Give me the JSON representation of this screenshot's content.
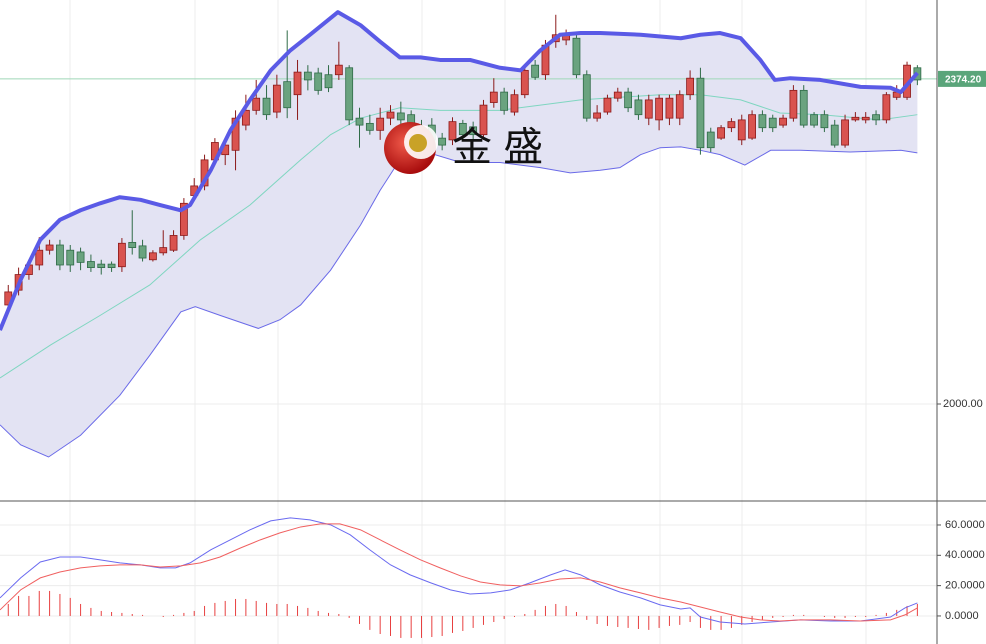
{
  "chart_data": [
    {
      "type": "candlestick",
      "open": [
        2114,
        2131,
        2149,
        2160,
        2177,
        2183,
        2177,
        2175,
        2164,
        2161,
        2161,
        2158,
        2186,
        2182,
        2166,
        2174,
        2177,
        2194,
        2240,
        2251,
        2281,
        2287,
        2292,
        2321,
        2338,
        2352,
        2336,
        2371,
        2356,
        2382,
        2381,
        2379,
        2379,
        2387,
        2329,
        2323,
        2315,
        2329,
        2335,
        2333,
        2318,
        2321,
        2306,
        2304,
        2323,
        2319,
        2310,
        2347,
        2359,
        2336,
        2356,
        2390,
        2379,
        2417,
        2419,
        2421,
        2379,
        2329,
        2336,
        2352,
        2359,
        2350,
        2329,
        2327,
        2329,
        2329,
        2356,
        2375,
        2313,
        2306,
        2318,
        2304,
        2306,
        2333,
        2329,
        2321,
        2329,
        2361,
        2333,
        2333,
        2321,
        2298,
        2327,
        2327,
        2333,
        2327,
        2353,
        2353,
        2387
      ],
      "high": [
        2137,
        2157,
        2166,
        2192,
        2189,
        2189,
        2183,
        2180,
        2172,
        2166,
        2164,
        2191,
        2223,
        2189,
        2177,
        2200,
        2200,
        2237,
        2260,
        2287,
        2306,
        2304,
        2338,
        2356,
        2373,
        2367,
        2379,
        2430,
        2396,
        2390,
        2387,
        2390,
        2417,
        2390,
        2341,
        2333,
        2341,
        2344,
        2348,
        2338,
        2327,
        2329,
        2312,
        2330,
        2327,
        2325,
        2350,
        2375,
        2364,
        2362,
        2390,
        2396,
        2419,
        2448,
        2431,
        2427,
        2384,
        2344,
        2356,
        2364,
        2364,
        2356,
        2356,
        2356,
        2356,
        2361,
        2384,
        2387,
        2318,
        2321,
        2329,
        2333,
        2338,
        2338,
        2333,
        2333,
        2367,
        2367,
        2336,
        2338,
        2327,
        2333,
        2336,
        2336,
        2338,
        2359,
        2367,
        2394,
        2390
      ],
      "low": [
        2108,
        2125,
        2143,
        2154,
        2172,
        2154,
        2152,
        2154,
        2152,
        2149,
        2152,
        2152,
        2172,
        2164,
        2164,
        2171,
        2175,
        2189,
        2237,
        2246,
        2277,
        2275,
        2269,
        2315,
        2333,
        2327,
        2329,
        2329,
        2327,
        2361,
        2356,
        2359,
        2373,
        2321,
        2295,
        2310,
        2304,
        2321,
        2315,
        2287,
        2292,
        2292,
        2292,
        2298,
        2304,
        2304,
        2304,
        2341,
        2333,
        2332,
        2352,
        2373,
        2373,
        2410,
        2413,
        2375,
        2325,
        2325,
        2333,
        2348,
        2336,
        2327,
        2321,
        2315,
        2321,
        2321,
        2350,
        2287,
        2290,
        2304,
        2313,
        2298,
        2304,
        2313,
        2313,
        2318,
        2325,
        2318,
        2318,
        2313,
        2295,
        2295,
        2325,
        2323,
        2321,
        2323,
        2350,
        2350,
        2367
      ],
      "close": [
        2129,
        2149,
        2160,
        2177,
        2183,
        2160,
        2160,
        2163,
        2157,
        2157,
        2157,
        2185,
        2180,
        2168,
        2174,
        2180,
        2194,
        2231,
        2251,
        2281,
        2301,
        2298,
        2329,
        2338,
        2352,
        2333,
        2367,
        2341,
        2382,
        2373,
        2361,
        2364,
        2390,
        2327,
        2321,
        2315,
        2329,
        2336,
        2327,
        2298,
        2298,
        2304,
        2298,
        2325,
        2310,
        2310,
        2344,
        2359,
        2338,
        2356,
        2384,
        2376,
        2413,
        2425,
        2425,
        2379,
        2329,
        2335,
        2352,
        2359,
        2341,
        2333,
        2350,
        2352,
        2352,
        2356,
        2375,
        2295,
        2295,
        2318,
        2325,
        2327,
        2333,
        2318,
        2318,
        2329,
        2361,
        2321,
        2321,
        2318,
        2298,
        2327,
        2330,
        2330,
        2327,
        2356,
        2359,
        2390,
        2373
      ],
      "up_color": "#d9534f",
      "down_color": "#6aa37f",
      "bands": [
        {
          "x": [
            -0.8,
            1.2,
            3.1,
            5.0,
            7.0,
            8.9,
            10.8,
            12.8,
            14.7,
            16.7,
            17.6,
            19.6,
            21.5,
            23.4,
            25.4,
            27.3,
            29.2,
            31.9,
            34.1,
            36.0,
            37.9,
            39.9,
            41.8,
            44.7,
            47.6,
            49.6,
            51.5,
            53.4,
            55.4,
            57.3,
            61.2,
            65.1,
            67.0,
            68.9,
            70.9,
            72.8,
            74.2,
            75.7,
            78.6,
            82.5,
            85.4,
            86.4,
            88.0
          ],
          "values": [
            2085,
            2143,
            2189,
            2212,
            2223,
            2231,
            2238,
            2235,
            2229,
            2223,
            2229,
            2269,
            2315,
            2350,
            2384,
            2407,
            2425,
            2451,
            2436,
            2417,
            2399,
            2399,
            2396,
            2396,
            2387,
            2384,
            2407,
            2425,
            2427,
            2427,
            2425,
            2421,
            2425,
            2427,
            2421,
            2396,
            2373,
            2375,
            2373,
            2365,
            2364,
            2359,
            2381
          ],
          "color": "#5a5ae6",
          "width": 4
        },
        {
          "x": [
            -0.8,
            4.1,
            8.9,
            13.7,
            18.6,
            23.4,
            28.3,
            31.2,
            34.1,
            37.9,
            41.8,
            47.6,
            51.5,
            55.4,
            59.2,
            63.1,
            67.0,
            70.9,
            74.7,
            78.6,
            84.4,
            88.0
          ],
          "values": [
            2030,
            2068,
            2102,
            2137,
            2189,
            2229,
            2281,
            2310,
            2329,
            2341,
            2338,
            2338,
            2344,
            2350,
            2353,
            2356,
            2356,
            2350,
            2335,
            2333,
            2327,
            2333
          ],
          "color": "#7fd6c0",
          "width": 1
        },
        {
          "x": [
            -0.8,
            1.2,
            3.9,
            7.0,
            10.8,
            13.7,
            16.7,
            18.1,
            20.5,
            24.2,
            26.3,
            28.3,
            31.2,
            34.1,
            36.0,
            37.9,
            39.9,
            43.8,
            47.6,
            51.5,
            54.4,
            57.3,
            59.2,
            61.2,
            63.1,
            65.1,
            67.0,
            68.9,
            71.3,
            73.8,
            76.7,
            81.5,
            86.4,
            88.0
          ],
          "values": [
            1976,
            1953,
            1939,
            1964,
            2010,
            2056,
            2106,
            2112,
            2102,
            2087,
            2097,
            2114,
            2154,
            2206,
            2246,
            2281,
            2292,
            2278,
            2278,
            2272,
            2266,
            2269,
            2272,
            2287,
            2295,
            2296,
            2292,
            2287,
            2275,
            2292,
            2292,
            2290,
            2292,
            2289
          ],
          "color": "#6a6ae8",
          "width": 1
        }
      ],
      "band_fill": "#e3e3f3",
      "last_price": {
        "value": 2374.2,
        "label": "2374.20"
      },
      "last_price_color": "#5aa57a",
      "xlim": [
        -0.8,
        89.9
      ],
      "ylim": [
        1889.5,
        2465
      ],
      "yticks": [
        {
          "value": 2000,
          "label": "2000.00"
        }
      ],
      "grid": true,
      "watermark": "金 盛"
    },
    {
      "type": "macd",
      "histogram": [
        7.9,
        13.2,
        13.2,
        16.5,
        16.5,
        14.5,
        11.9,
        7.9,
        5.3,
        3.3,
        2.6,
        2.0,
        1.3,
        0.7,
        0,
        -0.7,
        0.7,
        2.0,
        3.3,
        6.6,
        8.6,
        9.9,
        11.2,
        11.2,
        9.9,
        8.6,
        7.9,
        7.9,
        6.6,
        5.3,
        3.3,
        2.0,
        1.3,
        -1.3,
        -5.3,
        -9.2,
        -11.9,
        -13.2,
        -14.5,
        -14.5,
        -14.5,
        -13.9,
        -13.2,
        -11.2,
        -9.9,
        -7.9,
        -5.9,
        -4.0,
        -2.0,
        -0.7,
        1.3,
        4.0,
        6.6,
        7.9,
        6.6,
        2.6,
        -2.6,
        -5.3,
        -6.6,
        -7.3,
        -7.9,
        -8.6,
        -9.2,
        -7.9,
        -6.6,
        -5.9,
        -4.0,
        -7.9,
        -9.2,
        -9.2,
        -7.9,
        -5.9,
        -4.0,
        -2.6,
        -1.3,
        -0.7,
        0.7,
        0.7,
        0,
        -0.7,
        -1.3,
        -1.3,
        -0.7,
        -0.7,
        0.7,
        2.0,
        4.0,
        6.6,
        7.9
      ],
      "hist_color": "#e84040",
      "lines": [
        {
          "x": [
            -0.8,
            1.2,
            3.1,
            5.0,
            7.0,
            8.9,
            10.8,
            12.8,
            14.7,
            16.2,
            17.6,
            19.6,
            21.5,
            23.4,
            25.4,
            27.3,
            29.2,
            31.2,
            33.1,
            35.0,
            37.0,
            38.9,
            40.9,
            42.8,
            44.7,
            46.7,
            48.6,
            50.5,
            52.5,
            53.9,
            55.4,
            57.3,
            59.2,
            61.2,
            63.1,
            65.1,
            66.0,
            67.0,
            68.9,
            71.3,
            73.8,
            76.7,
            79.6,
            82.5,
            85.4,
            86.8,
            88.0
          ],
          "values": [
            11.9,
            25.1,
            35.6,
            38.9,
            38.9,
            37.0,
            35.0,
            33.7,
            31.7,
            31.7,
            35.0,
            43.6,
            50.2,
            56.8,
            62.7,
            64.7,
            63.4,
            60.1,
            53.5,
            43.6,
            33.7,
            27.1,
            21.8,
            17.2,
            14.5,
            15.2,
            17.2,
            21.8,
            27.1,
            30.4,
            27.1,
            20.5,
            15.8,
            11.9,
            7.3,
            4.6,
            5.3,
            -0.7,
            -4.0,
            -5.3,
            -4.0,
            -2.6,
            -3.3,
            -3.3,
            -0.7,
            5.3,
            8.6
          ],
          "color": "#6a6af0"
        },
        {
          "x": [
            -0.8,
            1.2,
            3.1,
            5.0,
            7.0,
            8.9,
            10.8,
            12.8,
            14.7,
            16.7,
            18.6,
            20.5,
            22.5,
            24.4,
            26.3,
            28.3,
            30.2,
            32.1,
            34.1,
            36.0,
            37.9,
            39.9,
            41.8,
            43.8,
            45.7,
            47.6,
            49.6,
            51.5,
            53.4,
            55.4,
            57.3,
            59.2,
            61.2,
            63.1,
            65.1,
            67.0,
            68.9,
            70.9,
            72.8,
            74.7,
            76.7,
            79.6,
            82.5,
            85.4,
            86.8,
            88.0
          ],
          "values": [
            4.0,
            17.2,
            25.1,
            29.0,
            31.7,
            33.0,
            33.7,
            33.7,
            32.3,
            33.0,
            35.0,
            38.9,
            44.9,
            50.2,
            54.8,
            58.7,
            60.7,
            60.7,
            56.8,
            50.2,
            43.6,
            37.0,
            31.7,
            26.4,
            22.4,
            20.5,
            19.8,
            21.8,
            24.4,
            25.1,
            22.4,
            18.5,
            15.2,
            11.9,
            9.2,
            5.9,
            2.6,
            -0.7,
            -2.6,
            -3.3,
            -2.6,
            -2.6,
            -3.3,
            -2.6,
            0.7,
            5.3
          ],
          "color": "#f06060"
        }
      ],
      "xlim": [
        -0.8,
        89.9
      ],
      "ylim": [
        -18.5,
        74.5
      ],
      "yticks": [
        {
          "value": 60,
          "label": "60.0000"
        },
        {
          "value": 40,
          "label": "40.0000"
        },
        {
          "value": 20,
          "label": "20.0000"
        },
        {
          "value": 0,
          "label": "0.0000"
        }
      ],
      "grid": true
    }
  ]
}
